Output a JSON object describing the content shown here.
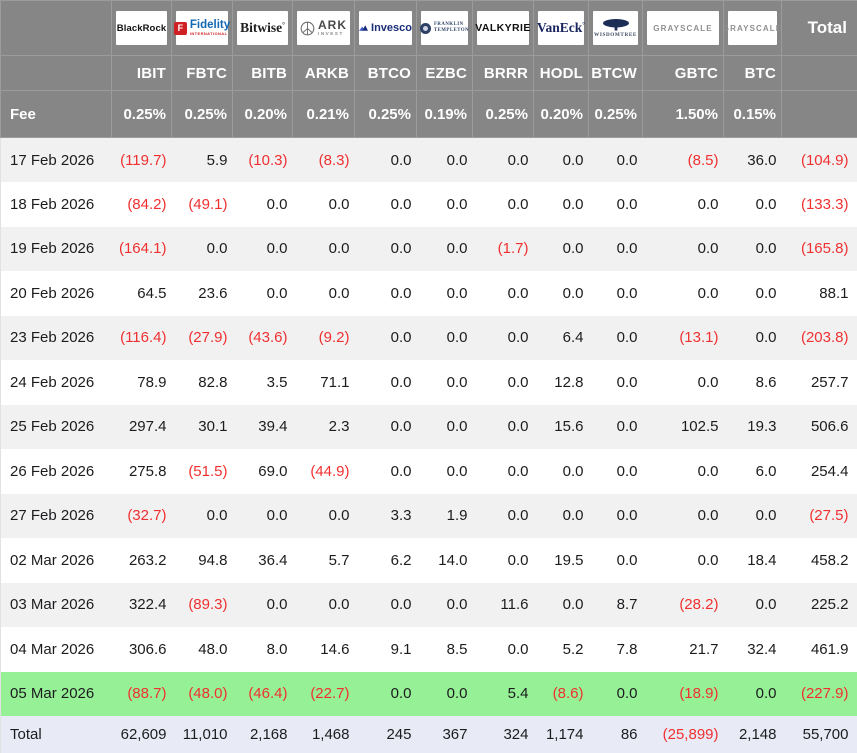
{
  "colors": {
    "header_bg": "#868686",
    "header_border": "#9c9c9c",
    "row_alt_bg": "#f1f1f2",
    "highlight_row_bg": "#96f096",
    "total_row_bg": "#e8ebf6",
    "negative_red": "#f03030",
    "fidelity_red": "#cf2026",
    "fidelity_blue": "#1268b3",
    "invesco_blue": "#1a2d7a",
    "vaneck_navy": "#19265e",
    "wisdomtree_navy": "#1b2c55",
    "grayscale_gray": "#8f8f8f"
  },
  "chart_data": {
    "type": "table",
    "title": "",
    "fee_label": "Fee",
    "total_column_label": "Total",
    "total_row_label": "Total",
    "columns": [
      "",
      "IBIT",
      "FBTC",
      "BITB",
      "ARKB",
      "BTCO",
      "EZBC",
      "BRRR",
      "HODL",
      "BTCW",
      "GBTC",
      "BTC",
      "Total"
    ],
    "providers": [
      {
        "name": "BlackRock",
        "ticker": "IBIT",
        "fee": "0.25%"
      },
      {
        "name": "Fidelity",
        "initial": "F",
        "sub": "INTERNATIONAL",
        "ticker": "FBTC",
        "fee": "0.25%"
      },
      {
        "name": "Bitwise",
        "ticker": "BITB",
        "fee": "0.20%"
      },
      {
        "name": "ARK",
        "sub": "INVEST",
        "ticker": "ARKB",
        "fee": "0.21%"
      },
      {
        "name": "Invesco",
        "ticker": "BTCO",
        "fee": "0.25%"
      },
      {
        "name": "FRANKLIN",
        "sub": "TEMPLETON",
        "ticker": "EZBC",
        "fee": "0.19%"
      },
      {
        "name": "VALKYRIE",
        "ticker": "BRRR",
        "fee": "0.25%"
      },
      {
        "name": "VanEck",
        "ticker": "HODL",
        "fee": "0.20%"
      },
      {
        "name": "WISDOMTREE",
        "ticker": "BTCW",
        "fee": "0.25%"
      },
      {
        "name": "GRAYSCALE",
        "ticker": "GBTC",
        "fee": "1.50%"
      },
      {
        "name": "GRAYSCALE",
        "ticker": "BTC",
        "fee": "0.15%"
      }
    ],
    "rows": [
      {
        "date": "17 Feb 2026",
        "values": [
          "(119.7)",
          "5.9",
          "(10.3)",
          "(8.3)",
          "0.0",
          "0.0",
          "0.0",
          "0.0",
          "0.0",
          "(8.5)",
          "36.0",
          "(104.9)"
        ]
      },
      {
        "date": "18 Feb 2026",
        "values": [
          "(84.2)",
          "(49.1)",
          "0.0",
          "0.0",
          "0.0",
          "0.0",
          "0.0",
          "0.0",
          "0.0",
          "0.0",
          "0.0",
          "(133.3)"
        ]
      },
      {
        "date": "19 Feb 2026",
        "values": [
          "(164.1)",
          "0.0",
          "0.0",
          "0.0",
          "0.0",
          "0.0",
          "(1.7)",
          "0.0",
          "0.0",
          "0.0",
          "0.0",
          "(165.8)"
        ]
      },
      {
        "date": "20 Feb 2026",
        "values": [
          "64.5",
          "23.6",
          "0.0",
          "0.0",
          "0.0",
          "0.0",
          "0.0",
          "0.0",
          "0.0",
          "0.0",
          "0.0",
          "88.1"
        ]
      },
      {
        "date": "23 Feb 2026",
        "values": [
          "(116.4)",
          "(27.9)",
          "(43.6)",
          "(9.2)",
          "0.0",
          "0.0",
          "0.0",
          "6.4",
          "0.0",
          "(13.1)",
          "0.0",
          "(203.8)"
        ]
      },
      {
        "date": "24 Feb 2026",
        "values": [
          "78.9",
          "82.8",
          "3.5",
          "71.1",
          "0.0",
          "0.0",
          "0.0",
          "12.8",
          "0.0",
          "0.0",
          "8.6",
          "257.7"
        ]
      },
      {
        "date": "25 Feb 2026",
        "values": [
          "297.4",
          "30.1",
          "39.4",
          "2.3",
          "0.0",
          "0.0",
          "0.0",
          "15.6",
          "0.0",
          "102.5",
          "19.3",
          "506.6"
        ]
      },
      {
        "date": "26 Feb 2026",
        "values": [
          "275.8",
          "(51.5)",
          "69.0",
          "(44.9)",
          "0.0",
          "0.0",
          "0.0",
          "0.0",
          "0.0",
          "0.0",
          "6.0",
          "254.4"
        ]
      },
      {
        "date": "27 Feb 2026",
        "values": [
          "(32.7)",
          "0.0",
          "0.0",
          "0.0",
          "3.3",
          "1.9",
          "0.0",
          "0.0",
          "0.0",
          "0.0",
          "0.0",
          "(27.5)"
        ]
      },
      {
        "date": "02 Mar 2026",
        "values": [
          "263.2",
          "94.8",
          "36.4",
          "5.7",
          "6.2",
          "14.0",
          "0.0",
          "19.5",
          "0.0",
          "0.0",
          "18.4",
          "458.2"
        ]
      },
      {
        "date": "03 Mar 2026",
        "values": [
          "322.4",
          "(89.3)",
          "0.0",
          "0.0",
          "0.0",
          "0.0",
          "11.6",
          "0.0",
          "8.7",
          "(28.2)",
          "0.0",
          "225.2"
        ]
      },
      {
        "date": "04 Mar 2026",
        "values": [
          "306.6",
          "48.0",
          "8.0",
          "14.6",
          "9.1",
          "8.5",
          "0.0",
          "5.2",
          "7.8",
          "21.7",
          "32.4",
          "461.9"
        ]
      },
      {
        "date": "05 Mar 2026",
        "highlight": true,
        "values": [
          "(88.7)",
          "(48.0)",
          "(46.4)",
          "(22.7)",
          "0.0",
          "0.0",
          "5.4",
          "(8.6)",
          "0.0",
          "(18.9)",
          "0.0",
          "(227.9)"
        ]
      }
    ],
    "total": {
      "label": "Total",
      "values": [
        "62,609",
        "11,010",
        "2,168",
        "1,468",
        "245",
        "367",
        "324",
        "1,174",
        "86",
        "(25,899)",
        "2,148",
        "55,700"
      ]
    }
  }
}
